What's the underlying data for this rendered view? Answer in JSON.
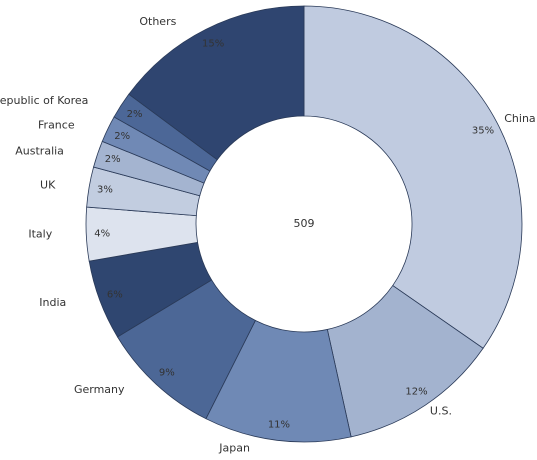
{
  "chart_data": {
    "type": "donut",
    "center_label": "509",
    "categories": [
      "China",
      "U.S.",
      "Japan",
      "Germany",
      "India",
      "Italy",
      "UK",
      "Australia",
      "France",
      "Republic of Korea",
      "Others"
    ],
    "values": [
      35,
      12,
      11,
      9,
      6,
      4,
      3,
      2,
      2,
      2,
      15
    ],
    "value_labels": [
      "35%",
      "12%",
      "11%",
      "9%",
      "6%",
      "4%",
      "3%",
      "2%",
      "2%",
      "2%",
      "15%"
    ],
    "colors": [
      "#c0cbe0",
      "#a3b3cf",
      "#6f89b5",
      "#4c6796",
      "#2f4670",
      "#dde3ee",
      "#c2cde0",
      "#a4b4d0",
      "#7089b5",
      "#4c6797",
      "#2f4570"
    ]
  }
}
